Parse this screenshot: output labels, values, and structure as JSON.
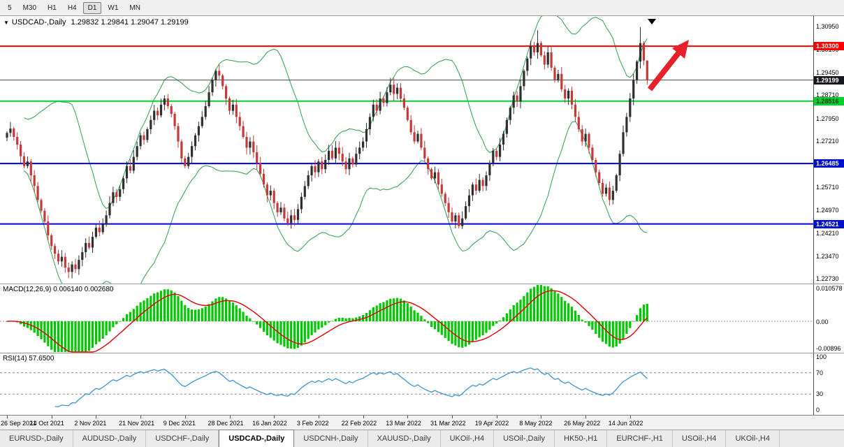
{
  "toolbar": {
    "timeframes": [
      {
        "label": "5",
        "active": false
      },
      {
        "label": "M30",
        "active": false
      },
      {
        "label": "H1",
        "active": false
      },
      {
        "label": "H4",
        "active": false
      },
      {
        "label": "D1",
        "active": true
      },
      {
        "label": "W1",
        "active": false
      },
      {
        "label": "MN",
        "active": false
      }
    ]
  },
  "chart": {
    "dropdown_icon": "▼",
    "title": "USDCAD-,Daily",
    "quote_line": "1.29832 1.29841 1.29047 1.29199",
    "quote": {
      "open": "1.29832",
      "high": "1.29841",
      "low": "1.29047",
      "close": "1.29199"
    }
  },
  "chart_data": {
    "type": "candlestick",
    "symbol": "USDCAD",
    "timeframe": "Daily",
    "closes": [
      1.2748,
      1.2762,
      1.2735,
      1.271,
      1.2672,
      1.264,
      1.2655,
      1.261,
      1.2575,
      1.253,
      1.2495,
      1.246,
      1.2415,
      1.238,
      1.2355,
      1.233,
      1.2345,
      1.231,
      1.2296,
      1.232,
      1.2305,
      1.2335,
      1.236,
      1.239,
      1.2375,
      1.241,
      1.244,
      1.2425,
      1.245,
      1.248,
      1.252,
      1.2555,
      1.254,
      1.2565,
      1.26,
      1.264,
      1.2625,
      1.267,
      1.2705,
      1.274,
      1.2725,
      1.276,
      1.279,
      1.282,
      1.2805,
      1.284,
      1.286,
      1.2835,
      1.281,
      1.277,
      1.272,
      1.2665,
      1.264,
      1.267,
      1.2705,
      1.274,
      1.277,
      1.28,
      1.2835,
      1.288,
      1.292,
      1.295,
      1.2935,
      1.29,
      1.286,
      1.282,
      1.284,
      1.28,
      1.277,
      1.2735,
      1.27,
      1.272,
      1.2685,
      1.265,
      1.2615,
      1.258,
      1.2545,
      1.256,
      1.252,
      1.249,
      1.2505,
      1.247,
      1.2455,
      1.248,
      1.2465,
      1.25,
      1.254,
      1.2575,
      1.261,
      1.264,
      1.262,
      1.2655,
      1.263,
      1.266,
      1.269,
      1.2665,
      1.27,
      1.268,
      1.2655,
      1.263,
      1.2665,
      1.2645,
      1.268,
      1.27,
      1.272,
      1.276,
      1.28,
      1.284,
      1.282,
      1.286,
      1.2845,
      1.288,
      1.2905,
      1.2875,
      1.2895,
      1.286,
      1.283,
      1.279,
      1.275,
      1.272,
      1.2745,
      1.27,
      1.2665,
      1.263,
      1.26,
      1.262,
      1.258,
      1.255,
      1.252,
      1.249,
      1.246,
      1.248,
      1.2445,
      1.247,
      1.251,
      1.2545,
      1.258,
      1.256,
      1.2595,
      1.2575,
      1.261,
      1.265,
      1.269,
      1.267,
      1.271,
      1.2745,
      1.279,
      1.283,
      1.287,
      1.285,
      1.29,
      1.295,
      1.299,
      1.303,
      1.301,
      1.304,
      1.3,
      1.297,
      1.301,
      1.296,
      1.292,
      1.294,
      1.289,
      1.286,
      1.2885,
      1.284,
      1.28,
      1.276,
      1.272,
      1.2745,
      1.27,
      1.266,
      1.262,
      1.2585,
      1.255,
      1.257,
      1.253,
      1.256,
      1.261,
      1.268,
      1.275,
      1.28,
      1.286,
      1.292,
      1.298,
      1.304,
      1.29832,
      1.29199
    ],
    "last_candle": {
      "open": 1.29832,
      "high": 1.29841,
      "low": 1.29047,
      "close": 1.29199
    },
    "wick_overrides": [
      {
        "index": 155,
        "high": 1.3082
      },
      {
        "index": 185,
        "high": 1.3092
      }
    ],
    "main_axis": {
      "ylim": [
        1.2258,
        1.3128
      ],
      "ticks": [
        "1.30950",
        "1.30190",
        "1.29450",
        "1.28710",
        "1.27950",
        "1.27210",
        "1.26470",
        "1.25710",
        "1.24970",
        "1.24210",
        "1.23470",
        "1.22730"
      ]
    },
    "hlines": [
      {
        "price": 1.303,
        "label": "1.30300",
        "color": "#ff0000",
        "badge_bg": "#ff0000",
        "badge_fg": "#ffffff",
        "width": 2
      },
      {
        "price": 1.29199,
        "label": "1.29199",
        "color": "#4a4a4a",
        "badge_bg": "#15181f",
        "badge_fg": "#ffffff",
        "width": 1
      },
      {
        "price": 1.28516,
        "label": "1.28516",
        "color": "#00d22d",
        "badge_bg": "#00d22d",
        "badge_fg": "#003300",
        "width": 2
      },
      {
        "price": 1.26485,
        "label": "1.26485",
        "color": "#0000dd",
        "badge_bg": "#0010cc",
        "badge_fg": "#ffffff",
        "width": 2
      },
      {
        "price": 1.24521,
        "label": "1.24521",
        "color": "#0000dd",
        "badge_bg": "#0010cc",
        "badge_fg": "#ffffff",
        "width": 2
      }
    ],
    "bollinger": {
      "period": 20,
      "deviation": 2
    },
    "indicators": {
      "macd": {
        "label": "MACD(12,26,9)",
        "values_line": "0.006140 0.002680",
        "main_value": 0.00614,
        "signal_value": 0.00268,
        "axis": {
          "top": "0.010578",
          "mid": "0.00",
          "bottom": "-0.00896"
        },
        "ylim": [
          -0.009,
          0.0106
        ]
      },
      "rsi": {
        "label": "RSI(14)",
        "value": "57.6500",
        "period": 14,
        "levels": [
          "100",
          "70",
          "30",
          "0"
        ],
        "dash_levels": [
          70,
          30
        ],
        "ylim": [
          0,
          100
        ]
      }
    },
    "dates": [
      {
        "label": "26 Sep 2021",
        "i": 0
      },
      {
        "label": "14 Oct 2021",
        "i": 13
      },
      {
        "label": "2 Nov 2021",
        "i": 26
      },
      {
        "label": "21 Nov 2021",
        "i": 39
      },
      {
        "label": "9 Dec 2021",
        "i": 52
      },
      {
        "label": "28 Dec 2021",
        "i": 65
      },
      {
        "label": "16 Jan 2022",
        "i": 78
      },
      {
        "label": "3 Feb 2022",
        "i": 91
      },
      {
        "label": "22 Feb 2022",
        "i": 104
      },
      {
        "label": "13 Mar 2022",
        "i": 117
      },
      {
        "label": "31 Mar 2022",
        "i": 130
      },
      {
        "label": "19 Apr 2022",
        "i": 143
      },
      {
        "label": "8 May 2022",
        "i": 156
      },
      {
        "label": "26 May 2022",
        "i": 169
      },
      {
        "label": "14 Jun 2022",
        "i": 182
      }
    ],
    "colors": {
      "bull": "#2f2f2f",
      "bear": "#c23a3a",
      "band": "#2e9e4f",
      "macd_hist": "#00c800",
      "macd_signal": "#e00000",
      "rsi": "#3e95d1",
      "arrow": "#e8202a",
      "level_line": "#8a8a8a"
    }
  },
  "tabs": [
    {
      "label": "EURUSD-,Daily",
      "active": false
    },
    {
      "label": "AUDUSD-,Daily",
      "active": false
    },
    {
      "label": "USDCHF-,Daily",
      "active": false
    },
    {
      "label": "USDCAD-,Daily",
      "active": true
    },
    {
      "label": "USDCNH-,Daily",
      "active": false
    },
    {
      "label": "XAUUSD-,Daily",
      "active": false
    },
    {
      "label": "UKOil-,H4",
      "active": false
    },
    {
      "label": "USOil-,Daily",
      "active": false
    },
    {
      "label": "HK50-,H1",
      "active": false
    },
    {
      "label": "EURCHF-,H1",
      "active": false
    },
    {
      "label": "USOil-,H4",
      "active": false
    },
    {
      "label": "UKOil-,H4",
      "active": false
    }
  ]
}
